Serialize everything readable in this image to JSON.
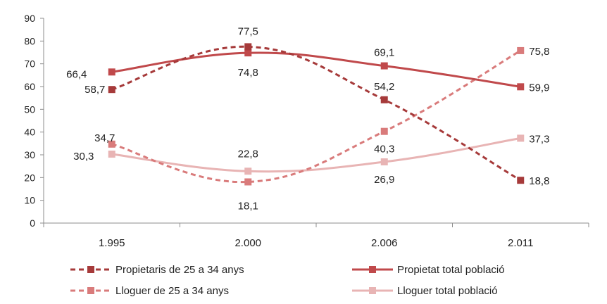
{
  "chart_data": {
    "type": "line",
    "title": "",
    "xlabel": "",
    "ylabel": "",
    "categories": [
      "1.995",
      "2.000",
      "2.006",
      "2.011"
    ],
    "ylim": [
      0,
      90
    ],
    "yticks": [
      "0",
      "10",
      "20",
      "30",
      "40",
      "50",
      "60",
      "70",
      "80",
      "90"
    ],
    "grid": false,
    "legend_position": "bottom",
    "series": [
      {
        "name": "Propietaris de 25 a 34 anys",
        "values": [
          58.7,
          77.5,
          54.2,
          18.8
        ],
        "labels": [
          "58,7",
          "77,5",
          "54,2",
          "18,8"
        ],
        "color": "#A63A3A",
        "dashed": true
      },
      {
        "name": "Propietat total població",
        "values": [
          66.4,
          74.8,
          69.1,
          59.9
        ],
        "labels": [
          "66,4",
          "74,8",
          "69,1",
          "59,9"
        ],
        "color": "#C0494B",
        "dashed": false
      },
      {
        "name": "Lloguer de 25 a 34 anys",
        "values": [
          34.7,
          18.1,
          40.3,
          75.8
        ],
        "labels": [
          "34,7",
          "18,1",
          "40,3",
          "75,8"
        ],
        "color": "#D97B7B",
        "dashed": true
      },
      {
        "name": "Lloguer total població",
        "values": [
          30.3,
          22.8,
          26.9,
          37.3
        ],
        "labels": [
          "30,3",
          "22,8",
          "26,9",
          "37,3"
        ],
        "color": "#E8B4B4",
        "dashed": false
      }
    ]
  }
}
